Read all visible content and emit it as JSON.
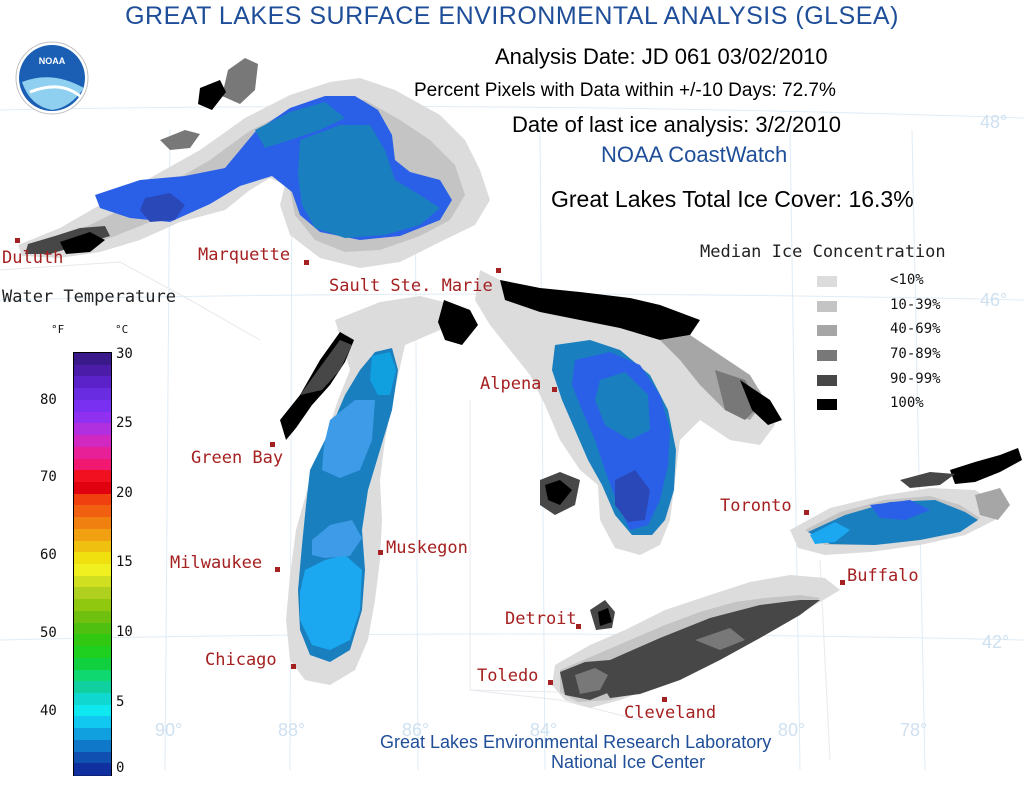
{
  "header": {
    "title": "GREAT LAKES SURFACE ENVIRONMENTAL ANALYSIS (GLSEA)",
    "analysis_date": "Analysis Date:  JD 061 03/02/2010",
    "percent_pixels": "Percent Pixels with Data within +/-10 Days:  72.7%",
    "last_ice": "Date of last ice analysis: 3/2/2010",
    "coastwatch": "NOAA CoastWatch",
    "ice_cover": "Great Lakes Total Ice Cover:  16.3%"
  },
  "logo": {
    "text": "NOAA"
  },
  "credits": {
    "line1": "Great Lakes Environmental Research Laboratory",
    "line2": "National Ice Center"
  },
  "ice_legend": {
    "title": "Median Ice Concentration",
    "items": [
      {
        "label": "<10%",
        "color": "#dcdcdc"
      },
      {
        "label": "10-39%",
        "color": "#c4c4c4"
      },
      {
        "label": "40-69%",
        "color": "#a6a6a6"
      },
      {
        "label": "70-89%",
        "color": "#787878"
      },
      {
        "label": "90-99%",
        "color": "#474747"
      },
      {
        "label": "100%",
        "color": "#000000"
      }
    ]
  },
  "temp_legend": {
    "title": "Water Temperature",
    "unit_f": "°F",
    "unit_c": "°C",
    "f_ticks": [
      "80",
      "70",
      "60",
      "50",
      "40"
    ],
    "c_ticks": [
      "30",
      "25",
      "20",
      "15",
      "10",
      "5",
      "0"
    ],
    "colors": [
      "#3a1a8a",
      "#4a1ca8",
      "#5a22c8",
      "#6a2ce0",
      "#7a30f0",
      "#9030f0",
      "#b030e0",
      "#d028c0",
      "#e82098",
      "#f01870",
      "#f01020",
      "#e00010",
      "#f04010",
      "#f06010",
      "#f08010",
      "#f0a010",
      "#f0c010",
      "#f0e010",
      "#f0f020",
      "#d0e020",
      "#b0d020",
      "#90c810",
      "#70c010",
      "#50c010",
      "#30c810",
      "#20d020",
      "#10d040",
      "#10d870",
      "#10d0a0",
      "#10d8d0",
      "#10e8f0",
      "#10c8f0",
      "#10a0e0",
      "#1078c8",
      "#1050b0",
      "#1030a0"
    ]
  },
  "cities": [
    {
      "name": "Duluth"
    },
    {
      "name": "Marquette"
    },
    {
      "name": "Sault Ste. Marie"
    },
    {
      "name": "Green Bay"
    },
    {
      "name": "Alpena"
    },
    {
      "name": "Milwaukee"
    },
    {
      "name": "Muskegon"
    },
    {
      "name": "Chicago"
    },
    {
      "name": "Detroit"
    },
    {
      "name": "Toledo"
    },
    {
      "name": "Cleveland"
    },
    {
      "name": "Toronto"
    },
    {
      "name": "Buffalo"
    }
  ],
  "gridlines": [
    "48°",
    "46°",
    "42°",
    "90°",
    "88°",
    "86°",
    "84°",
    "80°",
    "78°"
  ]
}
